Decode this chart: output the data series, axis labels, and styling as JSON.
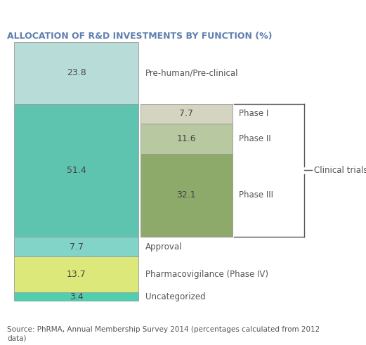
{
  "title": "ALLOCATION OF R&D INVESTMENTS BY FUNCTION (%)",
  "source_text": "Source: PhRMA, Annual Membership Survey 2014 (percentages calculated from 2012\ndata)",
  "main_segments": [
    {
      "label": "Pre-human/Pre-clinical",
      "value": 23.8,
      "color": "#b8ddd9"
    },
    {
      "label": "Clinical trials",
      "value": 51.4,
      "color": "#5ec4b0"
    },
    {
      "label": "Approval",
      "value": 7.7,
      "color": "#82d4c8"
    },
    {
      "label": "Pharmacovigilance (Phase IV)",
      "value": 13.7,
      "color": "#dde87a"
    },
    {
      "label": "Uncategorized",
      "value": 3.4,
      "color": "#4ecfb0"
    }
  ],
  "sub_segments": [
    {
      "label": "Phase I",
      "value": 7.7,
      "color": "#d4d4c0"
    },
    {
      "label": "Phase II",
      "value": 11.6,
      "color": "#b8c8a0"
    },
    {
      "label": "Phase III",
      "value": 32.1,
      "color": "#8eaa6a"
    }
  ],
  "clinical_trials_label": "Clinical trials",
  "background_color": "#ffffff",
  "title_color": "#6080b0",
  "label_color": "#555555",
  "value_color": "#444444",
  "source_text_color": "#555555"
}
